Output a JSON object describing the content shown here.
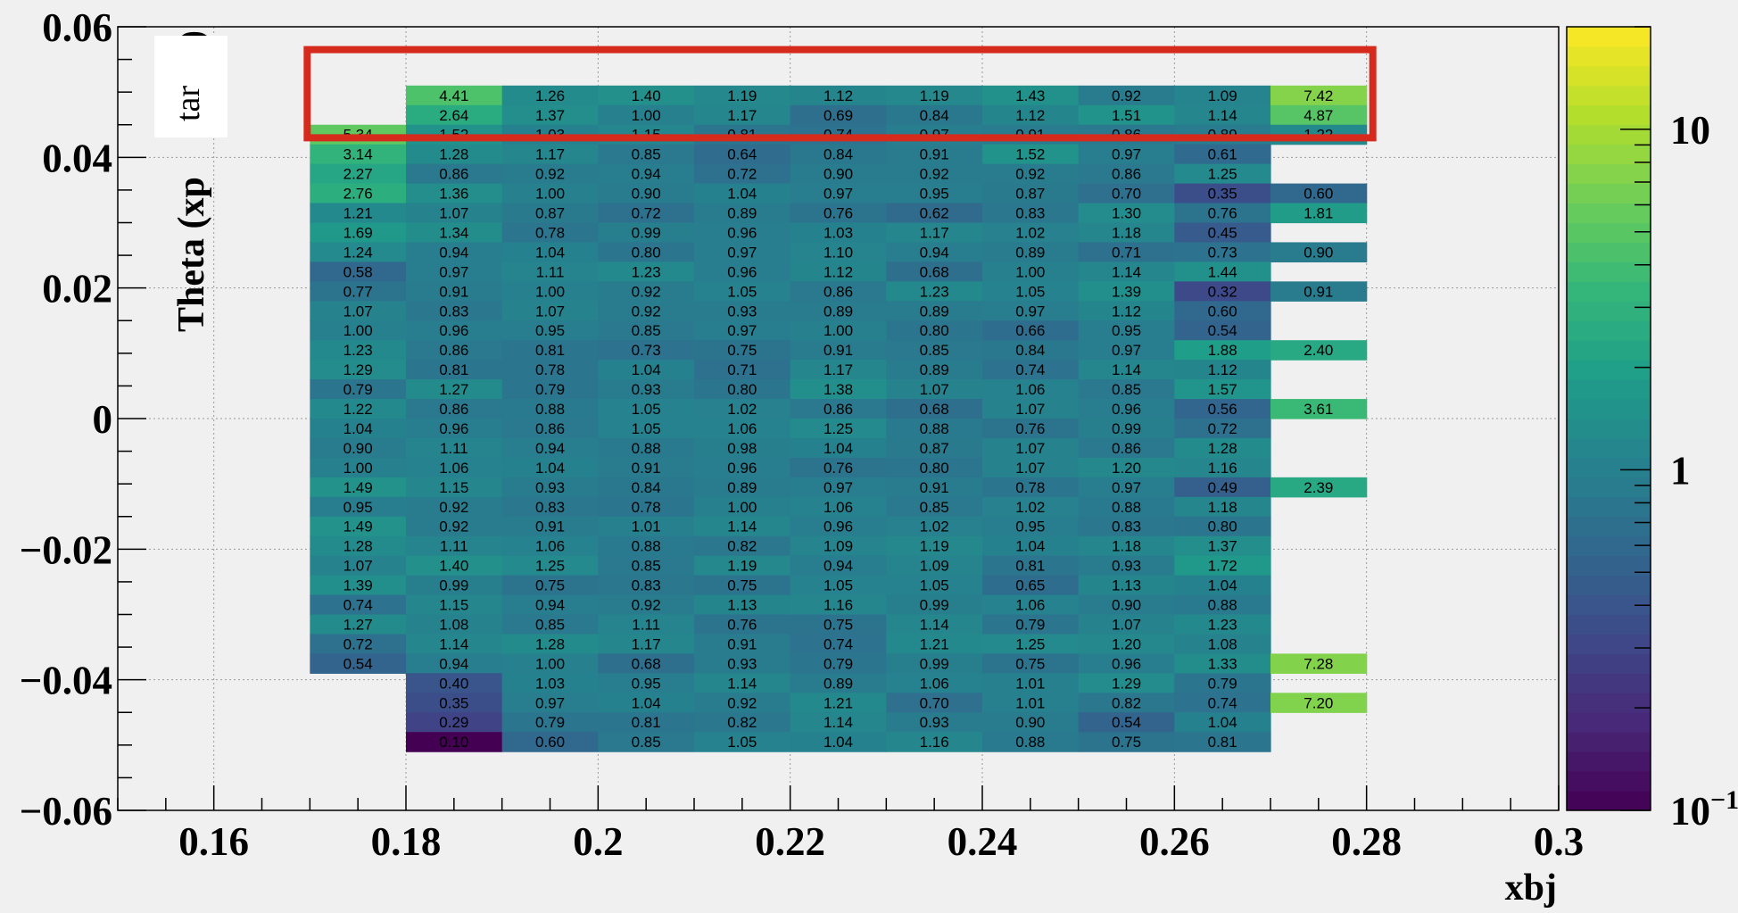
{
  "chart_data": {
    "type": "heatmap",
    "xlabel": "xbj",
    "ylabel": "Theta (xp",
    "ylabel_tail": ")",
    "overlay_box_text": "tar",
    "xlim": [
      0.15,
      0.3
    ],
    "ylim": [
      -0.06,
      0.06
    ],
    "x_bin_width": 0.01,
    "y_bin_width": 0.003,
    "x_tick_labels": [
      "0.16",
      "0.18",
      "0.2",
      "0.22",
      "0.24",
      "0.26",
      "0.28",
      "0.3"
    ],
    "x_tick_values": [
      0.16,
      0.18,
      0.2,
      0.22,
      0.24,
      0.26,
      0.28,
      0.3
    ],
    "y_tick_labels": [
      "−0.06",
      "−0.04",
      "−0.02",
      "0",
      "0.02",
      "0.04",
      "0.06"
    ],
    "y_tick_values": [
      -0.06,
      -0.04,
      -0.02,
      0,
      0.02,
      0.04,
      0.06
    ],
    "color_scale": {
      "type": "log",
      "range": [
        0.1,
        20
      ],
      "palette": "viridis",
      "tick_labels": [
        "10−1",
        "1",
        "10"
      ],
      "tick_values": [
        0.1,
        1,
        10
      ]
    },
    "grid": true,
    "highlight_box": {
      "x_range": [
        0.17,
        0.28
      ],
      "y_range": [
        0.043,
        0.0565
      ],
      "color": "#d62a1c"
    },
    "columns": [
      {
        "x_low": 0.17,
        "y_low_top": 0.042,
        "values": [
          5.34,
          3.14,
          2.27,
          2.76,
          1.21,
          1.69,
          1.24,
          0.58,
          0.77,
          1.07,
          1.0,
          1.23,
          1.29,
          0.79,
          1.22,
          1.04,
          0.9,
          1.0,
          1.49,
          0.95,
          1.49,
          1.28,
          1.07,
          1.39,
          0.74,
          1.27,
          0.72,
          0.54
        ]
      },
      {
        "x_low": 0.18,
        "y_low_top": 0.048,
        "values": [
          4.41,
          2.64,
          1.52,
          1.28,
          0.86,
          1.36,
          1.07,
          1.34,
          0.94,
          0.97,
          0.91,
          0.83,
          0.96,
          0.86,
          0.81,
          1.27,
          0.86,
          0.96,
          1.11,
          1.06,
          1.15,
          0.92,
          0.92,
          1.11,
          1.4,
          0.99,
          1.15,
          1.08,
          1.14,
          0.94,
          0.4,
          0.35,
          0.29,
          0.1
        ]
      },
      {
        "x_low": 0.19,
        "y_low_top": 0.048,
        "values": [
          1.26,
          1.37,
          1.03,
          1.17,
          0.92,
          1.0,
          0.87,
          0.78,
          1.04,
          1.11,
          1.0,
          1.07,
          0.95,
          0.81,
          0.78,
          0.79,
          0.88,
          0.86,
          0.94,
          1.04,
          0.93,
          0.83,
          0.91,
          1.06,
          1.25,
          0.75,
          0.94,
          0.85,
          1.28,
          1.0,
          1.03,
          0.97,
          0.79,
          0.6
        ]
      },
      {
        "x_low": 0.2,
        "y_low_top": 0.048,
        "values": [
          1.4,
          1.0,
          1.15,
          0.85,
          0.94,
          0.9,
          0.72,
          0.99,
          0.8,
          1.23,
          0.92,
          0.92,
          0.85,
          0.73,
          1.04,
          0.93,
          1.05,
          1.05,
          0.88,
          0.91,
          0.84,
          0.78,
          1.01,
          0.88,
          0.85,
          0.83,
          0.92,
          1.11,
          1.17,
          0.68,
          0.95,
          1.04,
          0.81,
          0.85
        ]
      },
      {
        "x_low": 0.21,
        "y_low_top": 0.048,
        "values": [
          1.19,
          1.17,
          0.81,
          0.64,
          0.72,
          1.04,
          0.89,
          0.96,
          0.97,
          0.96,
          1.05,
          0.93,
          0.97,
          0.75,
          0.71,
          0.8,
          1.02,
          1.06,
          0.98,
          0.96,
          0.89,
          1.0,
          1.14,
          0.82,
          1.19,
          0.75,
          1.13,
          0.76,
          0.91,
          0.93,
          1.14,
          0.92,
          0.82,
          1.05
        ]
      },
      {
        "x_low": 0.22,
        "y_low_top": 0.048,
        "values": [
          1.12,
          0.69,
          0.74,
          0.84,
          0.9,
          0.97,
          0.76,
          1.03,
          1.1,
          1.12,
          0.86,
          0.89,
          1.0,
          0.91,
          1.17,
          1.38,
          0.86,
          1.25,
          1.04,
          0.76,
          0.97,
          1.06,
          0.96,
          1.09,
          0.94,
          1.05,
          1.16,
          0.75,
          0.74,
          0.79,
          0.89,
          1.21,
          1.14,
          1.04
        ]
      },
      {
        "x_low": 0.23,
        "y_low_top": 0.048,
        "values": [
          1.19,
          0.84,
          0.97,
          0.91,
          0.92,
          0.95,
          0.62,
          1.17,
          0.94,
          0.68,
          1.23,
          0.89,
          0.8,
          0.85,
          0.89,
          1.07,
          0.68,
          0.88,
          0.87,
          0.8,
          0.91,
          0.85,
          1.02,
          1.19,
          1.09,
          1.05,
          0.99,
          1.14,
          1.21,
          0.99,
          1.06,
          0.7,
          0.93,
          1.16
        ]
      },
      {
        "x_low": 0.24,
        "y_low_top": 0.048,
        "values": [
          1.43,
          1.12,
          0.91,
          1.52,
          0.92,
          0.87,
          0.83,
          1.02,
          0.89,
          1.0,
          1.05,
          0.97,
          0.66,
          0.84,
          0.74,
          1.06,
          1.07,
          0.76,
          1.07,
          1.07,
          0.78,
          1.02,
          0.95,
          1.04,
          0.81,
          0.65,
          1.06,
          0.79,
          1.25,
          0.75,
          1.01,
          1.01,
          0.9,
          0.88
        ]
      },
      {
        "x_low": 0.25,
        "y_low_top": 0.048,
        "values": [
          0.92,
          1.51,
          0.86,
          0.97,
          0.86,
          0.7,
          1.3,
          1.18,
          0.71,
          1.14,
          1.39,
          1.12,
          0.95,
          0.97,
          1.14,
          0.85,
          0.96,
          0.99,
          0.86,
          1.2,
          0.97,
          0.88,
          0.83,
          1.18,
          0.93,
          1.13,
          0.9,
          1.07,
          1.2,
          0.96,
          1.29,
          0.82,
          0.54,
          0.75
        ]
      },
      {
        "x_low": 0.26,
        "y_low_top": 0.048,
        "values": [
          1.09,
          1.14,
          0.89,
          0.61,
          1.25,
          0.35,
          0.76,
          0.45,
          0.73,
          1.44,
          0.32,
          0.6,
          0.54,
          1.88,
          1.12,
          1.57,
          0.56,
          0.72,
          1.28,
          1.16,
          0.49,
          1.18,
          0.8,
          1.37,
          1.72,
          1.04,
          0.88,
          1.23,
          1.08,
          1.33,
          0.79,
          0.74,
          1.04,
          0.81
        ]
      },
      {
        "x_low": 0.27,
        "y_low_top": 0.048,
        "values": [
          7.42,
          4.87,
          1.22,
          null,
          null,
          0.6,
          1.81,
          null,
          0.9,
          null,
          0.91,
          null,
          null,
          2.4,
          null,
          null,
          3.61,
          null,
          null,
          null,
          2.39,
          null,
          null,
          null,
          null,
          null,
          null,
          null,
          null,
          7.28,
          null,
          7.2,
          null,
          null
        ]
      }
    ]
  }
}
